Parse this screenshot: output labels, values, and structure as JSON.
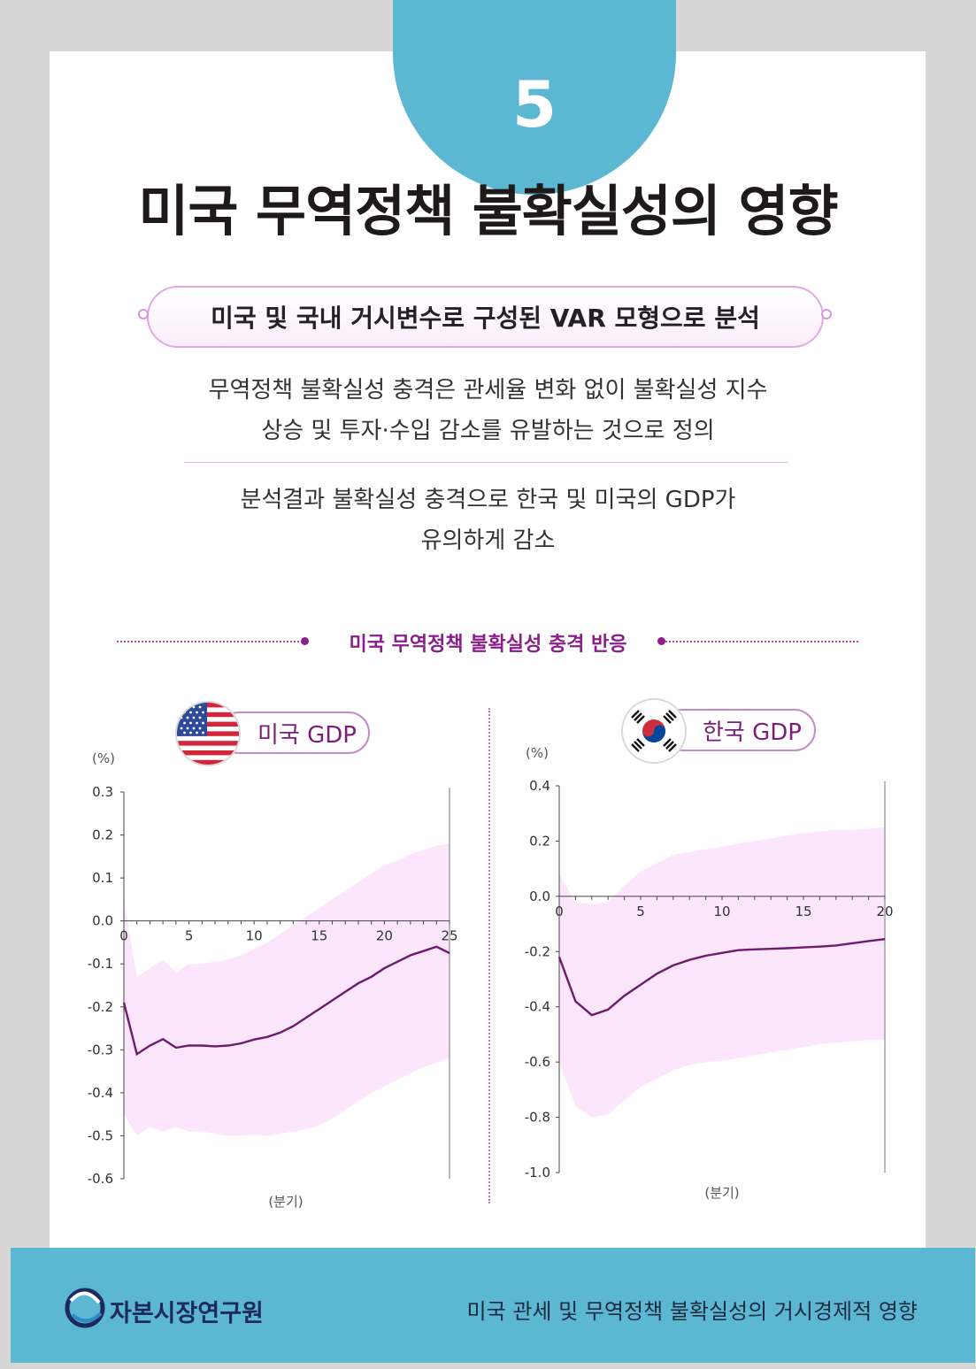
{
  "badge_number": "5",
  "title": "미국 무역정책 불확실성의 영향",
  "pill_text": "미국 및 국내 거시변수로 구성된 VAR 모형으로 분석",
  "desc1_line1": "무역정책 불확실성 충격은 관세율 변화 없이 불확실성 지수",
  "desc1_line2": "상승 및 투자·수입 감소를 유발하는 것으로 정의",
  "desc2_line1": "분석결과 불확실성 충격으로 한국 및 미국의 GDP가",
  "desc2_line2": "유의하게 감소",
  "section_title": "미국 무역정책 불확실성 충격 반응",
  "colors": {
    "accent_blue": "#5cb8d2",
    "line_purple": "#6e1a6e",
    "band_pink": "#fbe6fb",
    "heading_purple": "#8a1e8a"
  },
  "footer": {
    "org_name": "자본시장연구원",
    "doc_title": "미국 관세 및 무역정책 불확실성의 거시경제적 영향"
  },
  "chart_data": [
    {
      "type": "line",
      "label": "미국 GDP",
      "flag_icon": "us-flag-icon",
      "y_unit": "(%)",
      "xlabel": "(분기)",
      "xlim": [
        0,
        25
      ],
      "ylim": [
        -0.6,
        0.3
      ],
      "x_ticks": [
        0,
        5,
        10,
        15,
        20,
        25
      ],
      "y_ticks": [
        "0.3",
        "0.2",
        "0.1",
        "0.0",
        "-0.1",
        "-0.2",
        "-0.3",
        "-0.4",
        "-0.5",
        "-0.6"
      ],
      "x": [
        0,
        1,
        2,
        3,
        4,
        5,
        6,
        7,
        8,
        9,
        10,
        11,
        12,
        13,
        14,
        15,
        16,
        17,
        18,
        19,
        20,
        21,
        22,
        23,
        24,
        25
      ],
      "median": [
        -0.19,
        -0.31,
        -0.29,
        -0.275,
        -0.295,
        -0.29,
        -0.29,
        -0.292,
        -0.29,
        -0.285,
        -0.276,
        -0.27,
        -0.26,
        -0.245,
        -0.225,
        -0.205,
        -0.185,
        -0.165,
        -0.145,
        -0.13,
        -0.11,
        -0.095,
        -0.08,
        -0.07,
        -0.06,
        -0.075
      ],
      "upper": [
        0.05,
        -0.13,
        -0.11,
        -0.09,
        -0.12,
        -0.1,
        -0.1,
        -0.095,
        -0.09,
        -0.08,
        -0.065,
        -0.05,
        -0.03,
        -0.01,
        0.01,
        0.03,
        0.05,
        0.07,
        0.09,
        0.11,
        0.13,
        0.14,
        0.155,
        0.165,
        0.175,
        0.18
      ],
      "lower": [
        -0.45,
        -0.5,
        -0.48,
        -0.49,
        -0.48,
        -0.49,
        -0.49,
        -0.495,
        -0.5,
        -0.5,
        -0.498,
        -0.5,
        -0.495,
        -0.49,
        -0.485,
        -0.475,
        -0.46,
        -0.44,
        -0.42,
        -0.4,
        -0.385,
        -0.37,
        -0.355,
        -0.34,
        -0.33,
        -0.32
      ],
      "grid": false,
      "legend": "none"
    },
    {
      "type": "line",
      "label": "한국 GDP",
      "flag_icon": "kr-flag-icon",
      "y_unit": "(%)",
      "xlabel": "(분기)",
      "xlim": [
        0,
        20
      ],
      "ylim": [
        -1.0,
        0.4
      ],
      "x_ticks": [
        0,
        5,
        10,
        15,
        20
      ],
      "y_ticks": [
        "0.4",
        "0.2",
        "0.0",
        "-0.2",
        "-0.4",
        "-0.6",
        "-0.8",
        "-1.0"
      ],
      "x": [
        0,
        1,
        2,
        3,
        4,
        5,
        6,
        7,
        8,
        9,
        10,
        11,
        12,
        13,
        14,
        15,
        16,
        17,
        18,
        19,
        20
      ],
      "median": [
        -0.22,
        -0.38,
        -0.43,
        -0.41,
        -0.36,
        -0.32,
        -0.28,
        -0.25,
        -0.23,
        -0.215,
        -0.205,
        -0.195,
        -0.192,
        -0.19,
        -0.188,
        -0.185,
        -0.182,
        -0.178,
        -0.17,
        -0.162,
        -0.155
      ],
      "upper": [
        0.08,
        -0.02,
        -0.03,
        -0.02,
        0.04,
        0.09,
        0.12,
        0.15,
        0.16,
        0.17,
        0.18,
        0.19,
        0.2,
        0.21,
        0.22,
        0.23,
        0.235,
        0.24,
        0.24,
        0.245,
        0.25
      ],
      "lower": [
        -0.6,
        -0.76,
        -0.8,
        -0.79,
        -0.74,
        -0.69,
        -0.66,
        -0.63,
        -0.61,
        -0.6,
        -0.595,
        -0.585,
        -0.575,
        -0.565,
        -0.555,
        -0.545,
        -0.535,
        -0.53,
        -0.525,
        -0.52,
        -0.52
      ],
      "grid": false,
      "legend": "none"
    }
  ]
}
